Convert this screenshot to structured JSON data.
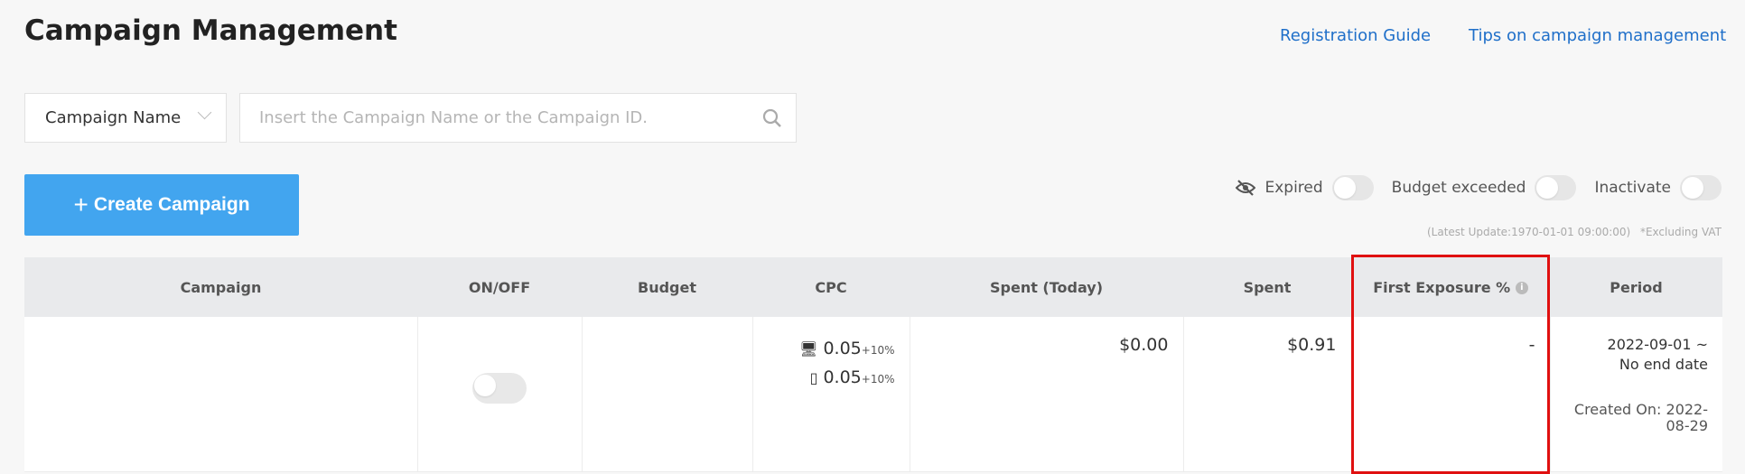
{
  "title": "Campaign Management",
  "links": {
    "guide": "Registration Guide",
    "tips": "Tips on campaign management"
  },
  "search": {
    "field": "Campaign Name",
    "placeholder": "Insert the Campaign Name or the Campaign ID."
  },
  "create": "Create Campaign",
  "filters": {
    "expired": "Expired",
    "budget": "Budget exceeded",
    "inactivate": "Inactivate"
  },
  "notes": {
    "update": "(Latest Update:1970-01-01 09:00:00)",
    "vat": "*Excluding VAT"
  },
  "columns": [
    "Campaign",
    "ON/OFF",
    "Budget",
    "CPC",
    "Spent (Today)",
    "Spent",
    "First Exposure %",
    "Period"
  ],
  "row": {
    "campaign": "",
    "cpc_pc": "0.05",
    "cpc_pc_adj": "+10%",
    "cpc_mobile": "0.05",
    "cpc_mobile_adj": "+10%",
    "spent_today": "$0.00",
    "spent": "$0.91",
    "first_exposure": "-",
    "period_start": "2022-09-01 ~",
    "period_end": "No end date",
    "created": "Created On: 2022-08-29"
  },
  "colors": {
    "accent": "#42a5ef",
    "highlight": "#e01010",
    "link": "#1f6fc9"
  }
}
